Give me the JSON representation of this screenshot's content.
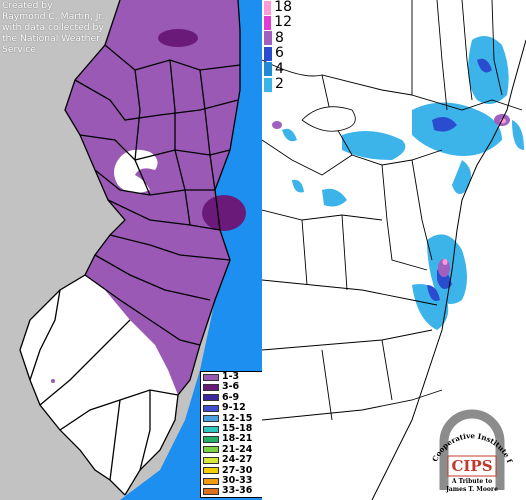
{
  "credit": {
    "line1": "Created by",
    "line2": "Raymond C. Martin, Jr.",
    "line3": "with data collected by",
    "line4": "the National Weather",
    "line5": "Service"
  },
  "nj_legend": {
    "items": [
      {
        "label": "1-3",
        "color": "#9b59b6"
      },
      {
        "label": "3-6",
        "color": "#6a1b7a"
      },
      {
        "label": "6-9",
        "color": "#3a2a9e"
      },
      {
        "label": "9-12",
        "color": "#3f4fd0"
      },
      {
        "label": "12-15",
        "color": "#4aa0e0"
      },
      {
        "label": "15-18",
        "color": "#2ec7c0"
      },
      {
        "label": "18-21",
        "color": "#26b067"
      },
      {
        "label": "21-24",
        "color": "#7ad144"
      },
      {
        "label": "24-27",
        "color": "#d7e83a"
      },
      {
        "label": "27-30",
        "color": "#f4d000"
      },
      {
        "label": "30-33",
        "color": "#f39c12"
      },
      {
        "label": "33-36",
        "color": "#e07020"
      }
    ]
  },
  "us_legend": {
    "items": [
      {
        "label": "18",
        "color": "#ff9ad6"
      },
      {
        "label": "12",
        "color": "#e23ad6"
      },
      {
        "label": "8",
        "color": "#a060c0"
      },
      {
        "label": "6",
        "color": "#2a4dcf"
      },
      {
        "label": "4",
        "color": "#1f8ad6"
      },
      {
        "label": "2",
        "color": "#3cb4ea"
      }
    ]
  },
  "logo": {
    "arc_text": "Cooperative Institute for Precipitation Systems",
    "acronym": "CIPS",
    "tribute_line1": "A Tribute to",
    "tribute_line2": "James T. Moore"
  },
  "colors": {
    "ocean_nj": "#1d8ff0",
    "land_gray": "#c2c2c2",
    "snow_light": "#3cb4ea",
    "snow_purple": "#9b59b6"
  }
}
